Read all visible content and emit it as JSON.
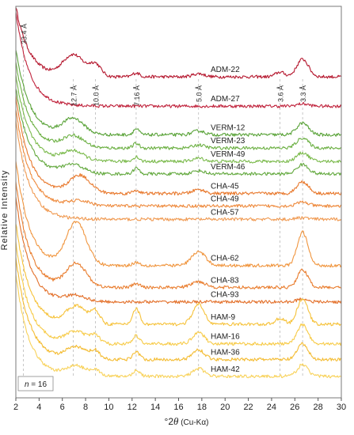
{
  "chart_data": {
    "type": "line",
    "title": "",
    "xlabel_prefix": "°2",
    "xlabel_theta": "θ",
    "xlabel_suffix": " (Cu-Kα)",
    "ylabel": "Relative Intensity",
    "xlim": [
      2,
      30
    ],
    "x_ticks": [
      2,
      4,
      6,
      8,
      10,
      12,
      14,
      16,
      18,
      20,
      22,
      24,
      26,
      28,
      30
    ],
    "y_ticks_shown": false,
    "grid": false,
    "annotation_n_label": "n",
    "annotation_n_value": " = 16",
    "reference_lines": [
      {
        "label": "33.4 Å",
        "x": 2.64
      },
      {
        "label": "12.7 Å",
        "x": 6.95
      },
      {
        "label": "10.0 Å",
        "x": 8.84
      },
      {
        "label": "7.16 Å",
        "x": 12.35
      },
      {
        "label": "5.0 Å",
        "x": 17.72
      },
      {
        "label": "3.6 Å",
        "x": 24.73
      },
      {
        "label": "3.3 Å",
        "x": 26.67
      }
    ],
    "series": [
      {
        "name": "ADM-22",
        "color": "#b5172e",
        "baseline": 0.82,
        "low_amp": 0.18,
        "peaks": [
          [
            6.95,
            0.055,
            0.9
          ],
          [
            8.84,
            0.03,
            0.5
          ],
          [
            12.35,
            0.01,
            0.3
          ],
          [
            17.72,
            0.008,
            0.5
          ],
          [
            24.73,
            0.012,
            0.4
          ],
          [
            26.67,
            0.045,
            0.5
          ]
        ]
      },
      {
        "name": "ADM-27",
        "color": "#c0233c",
        "baseline": 0.745,
        "low_amp": 0.24,
        "peaks": [
          [
            26.67,
            0.006,
            0.5
          ]
        ]
      },
      {
        "name": "VERM-12",
        "color": "#5aa339",
        "baseline": 0.672,
        "low_amp": 0.22,
        "peaks": [
          [
            6.95,
            0.04,
            0.9
          ],
          [
            12.35,
            0.015,
            0.25
          ],
          [
            17.72,
            0.01,
            0.5
          ],
          [
            26.67,
            0.03,
            0.5
          ]
        ]
      },
      {
        "name": "VERM-23",
        "color": "#6cb043",
        "baseline": 0.638,
        "low_amp": 0.22,
        "peaks": [
          [
            6.95,
            0.03,
            0.9
          ],
          [
            12.35,
            0.012,
            0.25
          ],
          [
            17.72,
            0.008,
            0.5
          ],
          [
            26.67,
            0.026,
            0.5
          ]
        ]
      },
      {
        "name": "VERM-49",
        "color": "#7bba4c",
        "baseline": 0.604,
        "low_amp": 0.22,
        "peaks": [
          [
            6.95,
            0.025,
            0.9
          ],
          [
            12.35,
            0.012,
            0.25
          ],
          [
            17.72,
            0.008,
            0.5
          ],
          [
            26.67,
            0.022,
            0.5
          ]
        ]
      },
      {
        "name": "VERM-46",
        "color": "#64a93f",
        "baseline": 0.572,
        "low_amp": 0.22,
        "peaks": [
          [
            6.95,
            0.022,
            0.9
          ],
          [
            12.35,
            0.015,
            0.25
          ],
          [
            17.72,
            0.008,
            0.5
          ],
          [
            26.67,
            0.024,
            0.5
          ]
        ]
      },
      {
        "name": "CHA-45",
        "color": "#e8782c",
        "baseline": 0.522,
        "low_amp": 0.25,
        "peaks": [
          [
            7.5,
            0.045,
            0.9
          ],
          [
            12.35,
            0.008,
            0.3
          ],
          [
            17.72,
            0.01,
            0.5
          ],
          [
            26.67,
            0.03,
            0.5
          ]
        ]
      },
      {
        "name": "CHA-49",
        "color": "#ee8a3d",
        "baseline": 0.49,
        "low_amp": 0.25,
        "peaks": [
          [
            7.5,
            0.012,
            0.9
          ],
          [
            26.67,
            0.01,
            0.5
          ]
        ]
      },
      {
        "name": "CHA-57",
        "color": "#f09a52",
        "baseline": 0.456,
        "low_amp": 0.25,
        "peaks": [
          [
            26.67,
            0.004,
            0.5
          ]
        ]
      },
      {
        "name": "CHA-62",
        "color": "#f0953e",
        "baseline": 0.338,
        "low_amp": 0.27,
        "peaks": [
          [
            7.2,
            0.11,
            0.85
          ],
          [
            12.35,
            0.008,
            0.3
          ],
          [
            17.72,
            0.035,
            0.6
          ],
          [
            26.67,
            0.085,
            0.45
          ]
        ]
      },
      {
        "name": "CHA-83",
        "color": "#e97d2e",
        "baseline": 0.282,
        "low_amp": 0.27,
        "peaks": [
          [
            7.2,
            0.06,
            0.85
          ],
          [
            12.35,
            0.01,
            0.3
          ],
          [
            17.72,
            0.015,
            0.6
          ],
          [
            26.67,
            0.045,
            0.45
          ]
        ]
      },
      {
        "name": "CHA-93",
        "color": "#e3702a",
        "baseline": 0.245,
        "low_amp": 0.27,
        "peaks": [
          [
            7.2,
            0.015,
            0.85
          ],
          [
            26.67,
            0.008,
            0.45
          ]
        ]
      },
      {
        "name": "HAM-9",
        "color": "#f6c23a",
        "baseline": 0.188,
        "low_amp": 0.26,
        "peaks": [
          [
            7.2,
            0.045,
            0.85
          ],
          [
            8.84,
            0.03,
            0.4
          ],
          [
            12.35,
            0.04,
            0.3
          ],
          [
            17.72,
            0.05,
            0.5
          ],
          [
            24.73,
            0.015,
            0.4
          ],
          [
            26.67,
            0.065,
            0.45
          ]
        ]
      },
      {
        "name": "HAM-16",
        "color": "#f7cb48",
        "baseline": 0.138,
        "low_amp": 0.26,
        "peaks": [
          [
            7.2,
            0.03,
            0.85
          ],
          [
            8.84,
            0.02,
            0.4
          ],
          [
            12.35,
            0.02,
            0.3
          ],
          [
            17.72,
            0.03,
            0.5
          ],
          [
            26.67,
            0.05,
            0.45
          ]
        ]
      },
      {
        "name": "HAM-36",
        "color": "#f4bc33",
        "baseline": 0.098,
        "low_amp": 0.26,
        "peaks": [
          [
            7.2,
            0.03,
            0.85
          ],
          [
            8.84,
            0.02,
            0.4
          ],
          [
            12.35,
            0.02,
            0.3
          ],
          [
            17.72,
            0.025,
            0.5
          ],
          [
            26.67,
            0.04,
            0.45
          ]
        ]
      },
      {
        "name": "HAM-42",
        "color": "#f8d25a",
        "baseline": 0.055,
        "low_amp": 0.26,
        "peaks": [
          [
            7.2,
            0.025,
            0.85
          ],
          [
            8.84,
            0.015,
            0.4
          ],
          [
            12.35,
            0.015,
            0.3
          ],
          [
            17.72,
            0.02,
            0.5
          ],
          [
            26.67,
            0.03,
            0.45
          ]
        ]
      }
    ]
  }
}
